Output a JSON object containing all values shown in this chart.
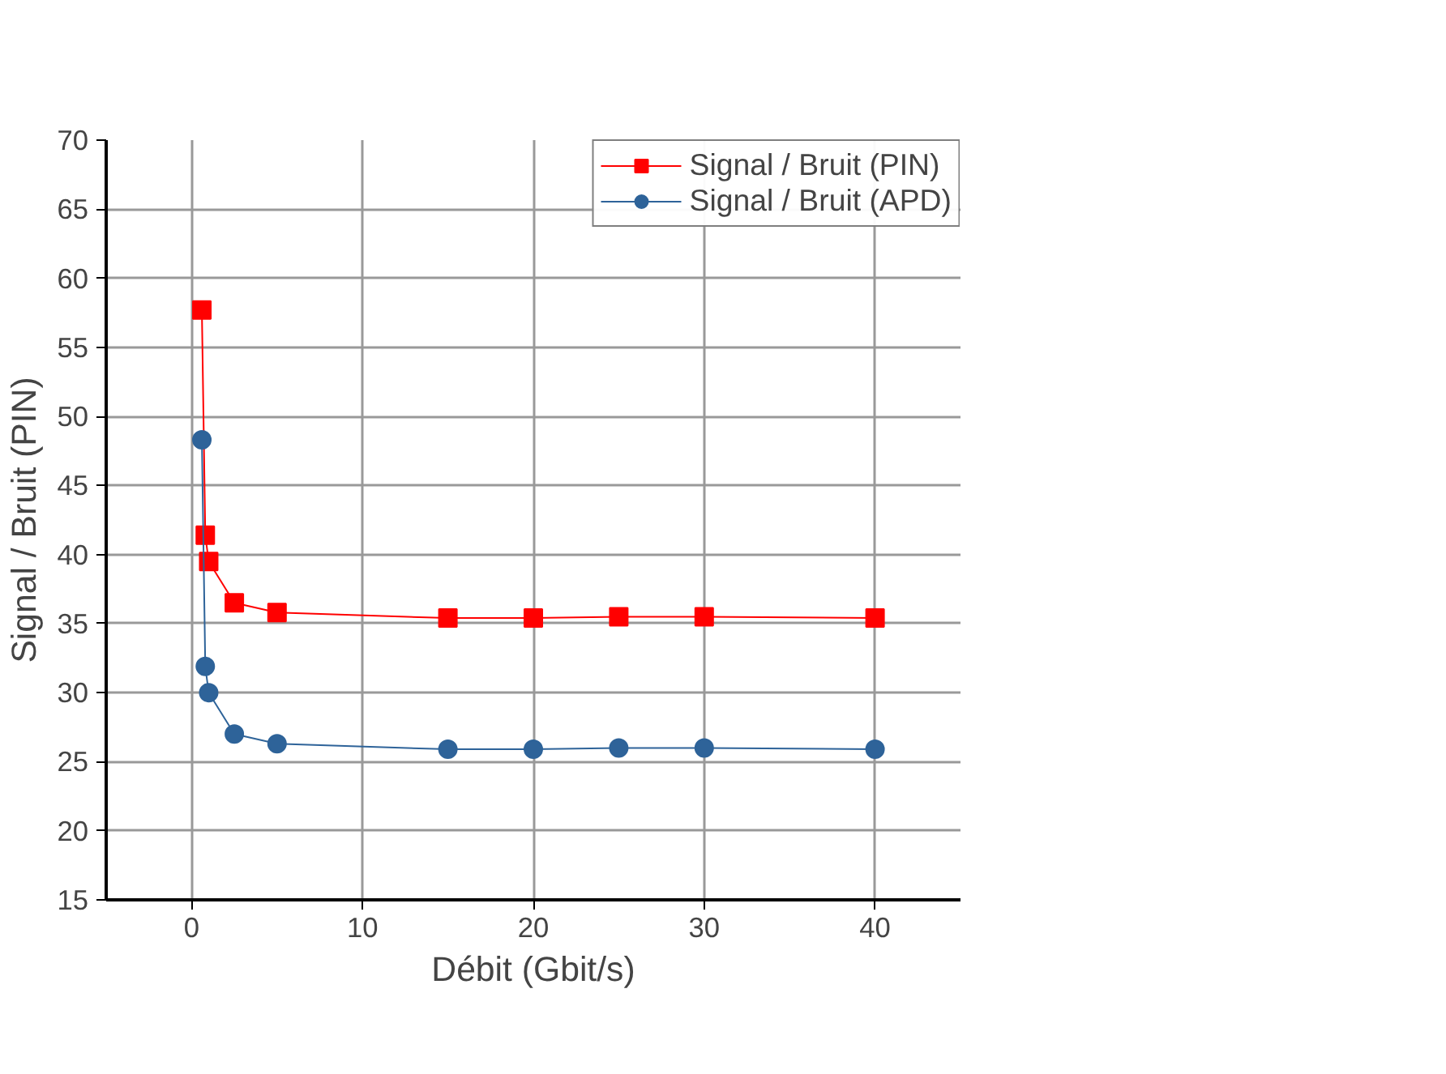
{
  "chart_data": {
    "type": "line",
    "xlabel": "Débit (Gbit/s)",
    "ylabel": "Signal / Bruit (PIN)",
    "x": [
      0.6,
      0.8,
      1.0,
      2.5,
      5,
      15,
      20,
      25,
      30,
      40
    ],
    "series": [
      {
        "name": "Signal / Bruit (PIN)",
        "color": "#ff0000",
        "marker": "square",
        "values": [
          57.7,
          41.4,
          39.5,
          36.5,
          35.8,
          35.4,
          35.4,
          35.5,
          35.5,
          35.4
        ]
      },
      {
        "name": "Signal / Bruit (APD)",
        "color": "#2e6399",
        "marker": "circle",
        "values": [
          48.3,
          31.9,
          30.0,
          27.0,
          26.3,
          25.9,
          25.9,
          26.0,
          26.0,
          25.9
        ]
      }
    ],
    "xlim": [
      -5,
      45
    ],
    "ylim": [
      15,
      70
    ],
    "xticks": [
      0,
      10,
      20,
      30,
      40
    ],
    "yticks": [
      15,
      20,
      25,
      30,
      35,
      40,
      45,
      50,
      55,
      60,
      65,
      70
    ],
    "grid": true,
    "legend": "top right",
    "line_style": "solid"
  }
}
